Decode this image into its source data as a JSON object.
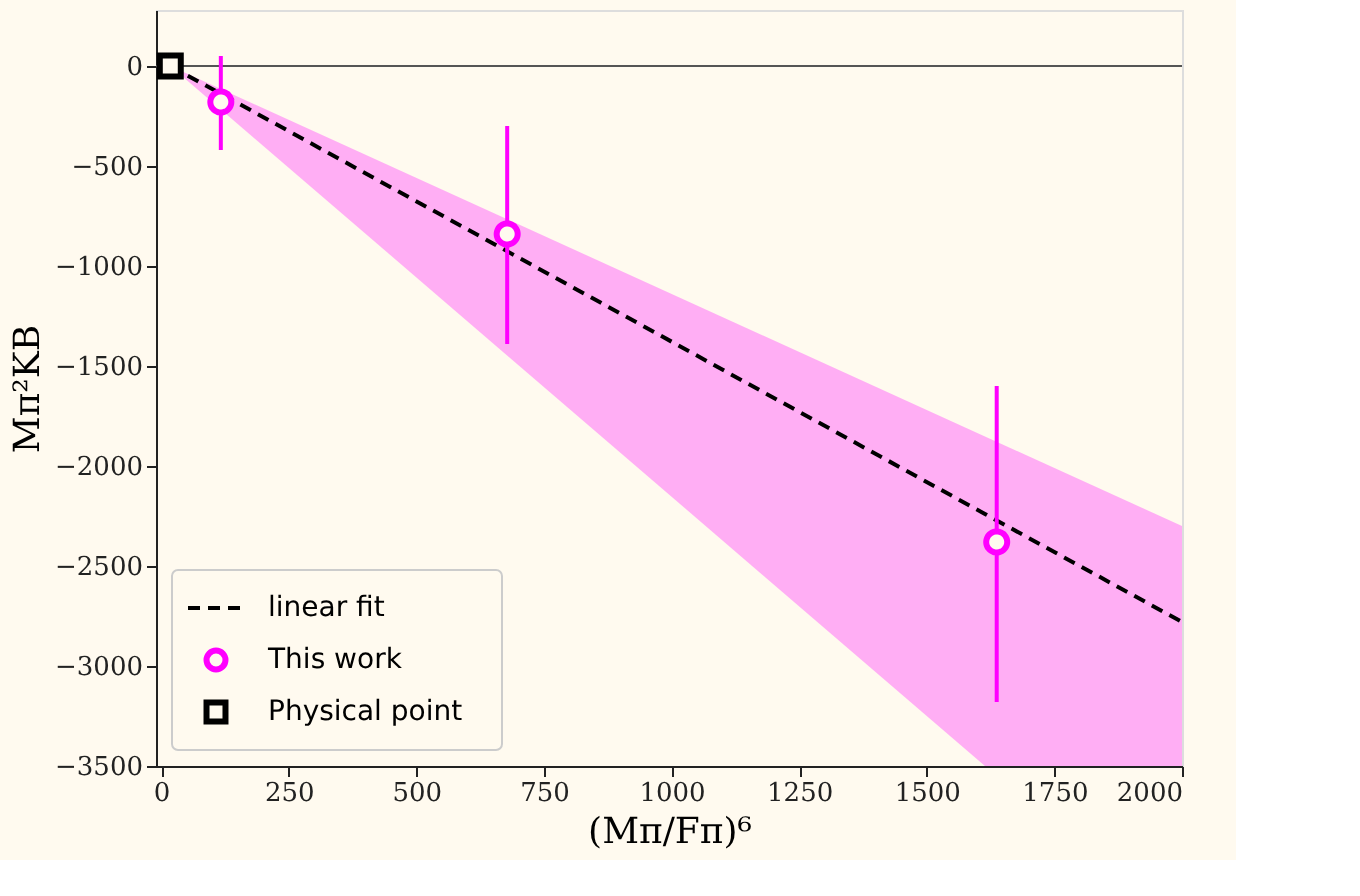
{
  "chart_data": {
    "type": "scatter",
    "xlabel": "(Mπ/Fπ)⁶",
    "ylabel": "Mπ²KB",
    "xlim": [
      -10,
      2000
    ],
    "ylim": [
      -3500,
      280
    ],
    "xticks": [
      0,
      250,
      500,
      750,
      1000,
      1250,
      1500,
      1750,
      2000
    ],
    "yticks": [
      -3500,
      -3000,
      -2500,
      -2000,
      -1500,
      -1000,
      -500,
      0
    ],
    "grid": false,
    "legend": "bottom left",
    "ref_lines": [
      {
        "axis": "y",
        "value": 0,
        "color": "#555555"
      }
    ],
    "series": [
      {
        "name": "linear fit",
        "type": "line",
        "line_style": "dashed",
        "marker": "none",
        "color": "#000000",
        "x": [
          18,
          1614,
          2000
        ],
        "values": [
          0,
          -2240,
          -2780
        ],
        "lower": [
          0,
          -3500,
          -3500
        ],
        "upper": [
          0,
          -1852,
          -2300
        ]
      },
      {
        "name": "This work",
        "marker": "circle",
        "color": "#ff00ff",
        "x": [
          117,
          678,
          1637
        ],
        "values": [
          -180,
          -840,
          -2380
        ],
        "errors": [
          [
            -420,
            50
          ],
          [
            -1390,
            -300
          ],
          [
            -3180,
            -1600
          ]
        ]
      },
      {
        "name": "Physical point",
        "marker": "square",
        "color": "#000000",
        "x": [
          18
        ],
        "values": [
          0
        ]
      }
    ]
  }
}
